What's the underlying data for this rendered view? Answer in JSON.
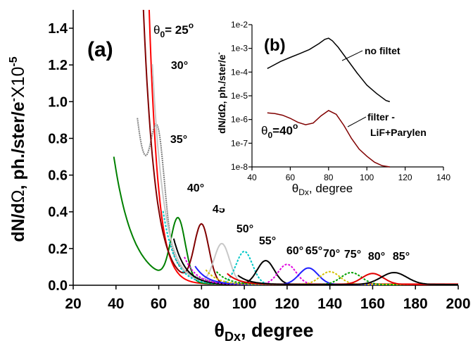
{
  "chart_data": [
    {
      "panel_label": "(a)",
      "type": "line",
      "xlabel_main": "θ",
      "xlabel_sub": "Dx",
      "xlabel_tail": ", degree",
      "ylabel_1": "dN/d",
      "ylabel_2": "Ω",
      "ylabel_3": ", ph./ster/e",
      "ylabel_4": "-",
      "ylabel_5": "X10",
      "ylabel_6": "-5",
      "xlim": [
        20,
        200
      ],
      "ylim": [
        0,
        1.5
      ],
      "xticks": [
        "20",
        "40",
        "60",
        "80",
        "100",
        "120",
        "140",
        "160",
        "180",
        "200"
      ],
      "yticks": [
        "0.0",
        "0.2",
        "0.4",
        "0.6",
        "0.8",
        "1.0",
        "1.2",
        "1.4"
      ],
      "theta0_prefix": "θ",
      "theta0_sub": "0",
      "theta0_eq": "= ",
      "series": [
        {
          "name": "25°",
          "label": "25",
          "color": "#ff0000",
          "dash": "",
          "start": 53,
          "peak": null,
          "amp": 0,
          "sigma": 4,
          "bg": 0
        },
        {
          "name": "30°",
          "label": "30°",
          "color": "#808080",
          "dash": "2,1",
          "start": 50,
          "peak": 59.5,
          "amp": 0.55,
          "sigma": 3.2,
          "bg": 7.5
        },
        {
          "name": "35°",
          "label": "35°",
          "color": "#008000",
          "dash": "",
          "start": 39,
          "peak": 69,
          "amp": 0.34,
          "sigma": 3.4,
          "bg": 5.8
        },
        {
          "name": "40°",
          "label": "40°",
          "color": "#800000",
          "dash": "",
          "start": 50,
          "peak": 80,
          "amp": 0.32,
          "sigma": 3.4,
          "bg": 2.5
        },
        {
          "name": "45°",
          "label": "45°",
          "color": "#c8c8c8",
          "dash": "",
          "start": 57,
          "peak": 89.5,
          "amp": 0.22,
          "sigma": 3.6,
          "bg": 1.2
        },
        {
          "name": "50°",
          "label": "50°",
          "color": "#00c8c8",
          "dash": "3,2",
          "start": 62,
          "peak": 100,
          "amp": 0.18,
          "sigma": 3.8,
          "bg": 0.4
        },
        {
          "name": "55°",
          "label": "55°",
          "color": "#000000",
          "dash": "",
          "start": 67,
          "peak": 110,
          "amp": 0.13,
          "sigma": 4.0,
          "bg": 0.25
        },
        {
          "name": "60°",
          "label": "60°",
          "color": "#e000e0",
          "dash": "3,2",
          "start": 72,
          "peak": 120,
          "amp": 0.11,
          "sigma": 4.2,
          "bg": 0.15
        },
        {
          "name": "65°",
          "label": "65°",
          "color": "#2020ff",
          "dash": "",
          "start": 77,
          "peak": 130,
          "amp": 0.09,
          "sigma": 4.4,
          "bg": 0.1
        },
        {
          "name": "70°",
          "label": "70°",
          "color": "#d4c000",
          "dash": "3,2",
          "start": 82,
          "peak": 140,
          "amp": 0.07,
          "sigma": 4.6,
          "bg": 0.08
        },
        {
          "name": "75°",
          "label": "75°",
          "color": "#00a000",
          "dash": "3,2",
          "start": 87,
          "peak": 150,
          "amp": 0.065,
          "sigma": 4.8,
          "bg": 0.07
        },
        {
          "name": "80°",
          "label": "80°",
          "color": "#e00000",
          "dash": "",
          "start": 92,
          "peak": 160,
          "amp": 0.06,
          "sigma": 5.0,
          "bg": 0.06
        },
        {
          "name": "85°",
          "label": "85°",
          "color": "#000000",
          "dash": "",
          "start": 97,
          "peak": 170,
          "amp": 0.065,
          "sigma": 6.0,
          "bg": 0.05
        }
      ]
    },
    {
      "panel_label": "(b)",
      "type": "line",
      "y_scale": "log",
      "xlabel_main": "θ",
      "xlabel_sub": "Dx",
      "xlabel_tail": ", degree",
      "ylabel": "dN/dΩ, ph./ster/e",
      "ylabel_sup": "-",
      "xlim": [
        40,
        140
      ],
      "ylim_exp": [
        -8,
        -2
      ],
      "xticks": [
        "40",
        "60",
        "80",
        "100",
        "120",
        "140"
      ],
      "yticks": [
        "1e-8",
        "1e-7",
        "1e-6",
        "1e-5",
        "1e-4",
        "1e-3",
        "1e-2"
      ],
      "annotation_prefix": "θ",
      "annotation_sub": "0",
      "annotation_tail": "=40",
      "annotation_sup": "o",
      "series": [
        {
          "name": "no filtet",
          "label": "no filtet",
          "color": "#000000",
          "x": [
            48,
            55,
            60,
            65,
            70,
            75,
            78,
            80,
            82,
            85,
            90,
            95,
            100,
            105,
            110,
            112
          ],
          "log_y": [
            -3.85,
            -3.55,
            -3.38,
            -3.22,
            -3.05,
            -2.8,
            -2.62,
            -2.57,
            -2.68,
            -2.95,
            -3.5,
            -4.05,
            -4.55,
            -4.9,
            -5.2,
            -5.25
          ]
        },
        {
          "name": "filter - LiF+Parylen",
          "label_1": "filter -",
          "label_2": "LiF+Parylen",
          "color": "#800000",
          "x": [
            48,
            52,
            56,
            60,
            64,
            68,
            72,
            76,
            80,
            84,
            88,
            92,
            96,
            100,
            104,
            108,
            112
          ],
          "log_y": [
            -5.72,
            -5.75,
            -5.82,
            -5.95,
            -6.12,
            -6.22,
            -6.15,
            -5.85,
            -5.62,
            -5.78,
            -6.25,
            -6.8,
            -7.25,
            -7.55,
            -7.8,
            -7.95,
            -8.0
          ]
        }
      ]
    }
  ]
}
